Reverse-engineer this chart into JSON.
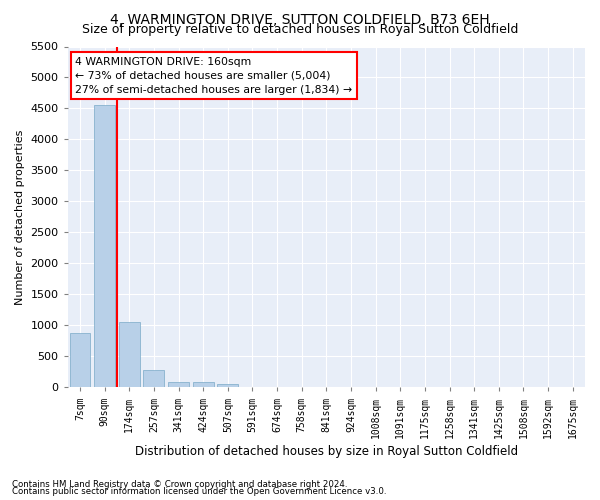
{
  "title": "4, WARMINGTON DRIVE, SUTTON COLDFIELD, B73 6EH",
  "subtitle": "Size of property relative to detached houses in Royal Sutton Coldfield",
  "xlabel": "Distribution of detached houses by size in Royal Sutton Coldfield",
  "ylabel": "Number of detached properties",
  "footnote1": "Contains HM Land Registry data © Crown copyright and database right 2024.",
  "footnote2": "Contains public sector information licensed under the Open Government Licence v3.0.",
  "categories": [
    "7sqm",
    "90sqm",
    "174sqm",
    "257sqm",
    "341sqm",
    "424sqm",
    "507sqm",
    "591sqm",
    "674sqm",
    "758sqm",
    "841sqm",
    "924sqm",
    "1008sqm",
    "1091sqm",
    "1175sqm",
    "1258sqm",
    "1341sqm",
    "1425sqm",
    "1508sqm",
    "1592sqm",
    "1675sqm"
  ],
  "values": [
    880,
    4550,
    1050,
    280,
    90,
    90,
    50,
    0,
    0,
    0,
    0,
    0,
    0,
    0,
    0,
    0,
    0,
    0,
    0,
    0,
    0
  ],
  "bar_color": "#b8d0e8",
  "bar_edge_color": "#7aaac8",
  "vline_color": "red",
  "annotation_text": "4 WARMINGTON DRIVE: 160sqm\n← 73% of detached houses are smaller (5,004)\n27% of semi-detached houses are larger (1,834) →",
  "annotation_box_color": "white",
  "annotation_box_edge_color": "red",
  "ylim": [
    0,
    5500
  ],
  "yticks": [
    0,
    500,
    1000,
    1500,
    2000,
    2500,
    3000,
    3500,
    4000,
    4500,
    5000,
    5500
  ],
  "bg_color": "#ffffff",
  "plot_bg_color": "#e8eef8",
  "title_fontsize": 10,
  "subtitle_fontsize": 9
}
